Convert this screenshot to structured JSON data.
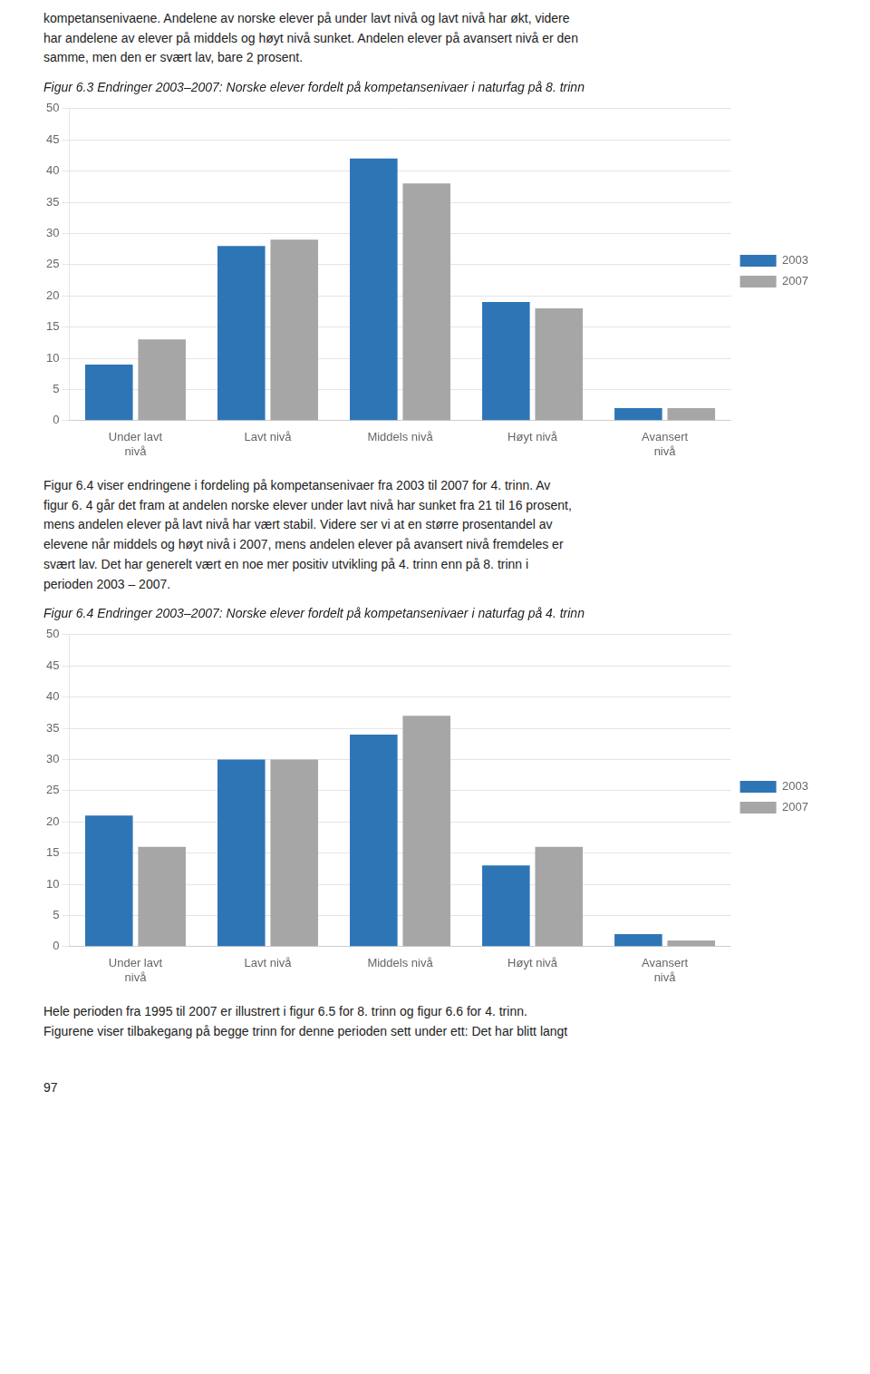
{
  "chart_data": [
    {
      "type": "bar",
      "title": "Figur 6.3 Endringer 2003–2007: Norske elever fordelt på kompetansenivaer i naturfag på 8. trinn",
      "categories": [
        "Under lavt\nnivå",
        "Lavt nivå",
        "Middels nivå",
        "Høyt nivå",
        "Avansert\nnivå"
      ],
      "series": [
        {
          "name": "2003",
          "color": "#2E75B6",
          "values": [
            9,
            28,
            42,
            19,
            2
          ]
        },
        {
          "name": "2007",
          "color": "#A6A6A6",
          "values": [
            13,
            29,
            38,
            18,
            2
          ]
        }
      ],
      "ylim": [
        0,
        50
      ],
      "yticks": [
        0,
        5,
        10,
        15,
        20,
        25,
        30,
        35,
        40,
        45,
        50
      ],
      "grid": true,
      "legend": "right"
    },
    {
      "type": "bar",
      "title": "Figur 6.4 Endringer 2003–2007: Norske elever fordelt på kompetansenivaer i naturfag på 4. trinn",
      "categories": [
        "Under lavt\nnivå",
        "Lavt nivå",
        "Middels nivå",
        "Høyt nivå",
        "Avansert\nnivå"
      ],
      "series": [
        {
          "name": "2003",
          "color": "#2E75B6",
          "values": [
            21,
            30,
            34,
            13,
            2
          ]
        },
        {
          "name": "2007",
          "color": "#A6A6A6",
          "values": [
            16,
            30,
            37,
            16,
            1
          ]
        }
      ],
      "ylim": [
        0,
        50
      ],
      "yticks": [
        0,
        5,
        10,
        15,
        20,
        25,
        30,
        35,
        40,
        45,
        50
      ],
      "grid": true,
      "legend": "right"
    }
  ],
  "annotations": [
    "kompetansenivaene. Andelene av norske elever på under lavt nivå og lavt nivå har økt, videre\nhar andelene av elever på middels og høyt nivå sunket. Andelen elever på avansert nivå er den\nsamme, men den er svært lav, bare 2 prosent.",
    "Figur 6.4 viser endringene i fordeling på kompetansenivaer fra 2003 til 2007 for 4. trinn. Av\nfigur 6. 4 går det fram at andelen norske elever under lavt nivå har sunket fra 21 til 16 prosent,\nmens andelen elever på lavt nivå har vært stabil. Videre ser vi at en større prosentandel av\nelevene når middels og høyt nivå i 2007, mens andelen elever på avansert nivå fremdeles er\nsvært lav. Det har generelt vært en noe mer positiv utvikling på 4. trinn enn på 8. trinn i\nperioden 2003 – 2007.",
    "Hele perioden fra 1995 til 2007 er illustrert i figur 6.5 for 8. trinn og figur 6.6 for 4. trinn.\nFigurene viser tilbakegang på begge trinn for denne perioden sett under ett: Det har blitt langt",
    "97"
  ]
}
